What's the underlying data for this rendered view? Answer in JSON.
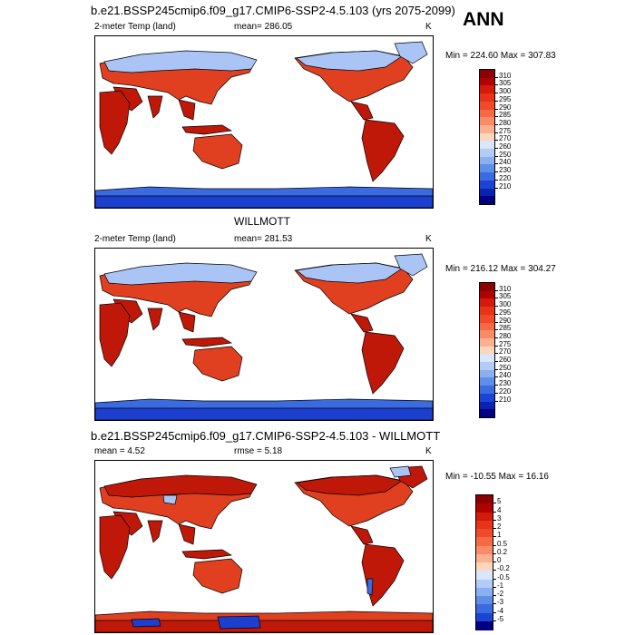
{
  "panel1": {
    "title": "b.e21.BSSP245cmip6.f09_g17.CMIP6-SSP2-4.5.103 (yrs 2075-2099)",
    "left_label": "2-meter Temp (land)",
    "center_label": "mean= 286.05",
    "units": "K",
    "minmax": "Min = 224.60 Max = 307.83",
    "colorbar": {
      "labels": [
        "310",
        "305",
        "300",
        "295",
        "290",
        "285",
        "280",
        "275",
        "270",
        "260",
        "250",
        "240",
        "230",
        "220",
        "210"
      ],
      "colors": [
        "#8b0000",
        "#b00000",
        "#d41a0a",
        "#e6331a",
        "#f04a2a",
        "#f56a45",
        "#f98c66",
        "#fbb090",
        "#fdd6bc",
        "#d9e6fb",
        "#b3ccf7",
        "#8ab0f0",
        "#5f8ee8",
        "#3b6be0",
        "#1c44d4",
        "#0a22b0",
        "#000080"
      ]
    }
  },
  "panel2": {
    "title": "WILLMOTT",
    "left_label": "2-meter Temp (land)",
    "center_label": "mean= 281.53",
    "units": "K",
    "minmax": "Min = 216.12 Max = 304.27",
    "colorbar": {
      "labels": [
        "310",
        "305",
        "300",
        "295",
        "290",
        "285",
        "280",
        "275",
        "270",
        "260",
        "250",
        "240",
        "230",
        "220",
        "210"
      ],
      "colors": [
        "#8b0000",
        "#b00000",
        "#d41a0a",
        "#e6331a",
        "#f04a2a",
        "#f56a45",
        "#f98c66",
        "#fbb090",
        "#fdd6bc",
        "#d9e6fb",
        "#b3ccf7",
        "#8ab0f0",
        "#5f8ee8",
        "#3b6be0",
        "#1c44d4",
        "#0a22b0",
        "#000080"
      ]
    }
  },
  "panel3": {
    "title": "b.e21.BSSP245cmip6.f09_g17.CMIP6-SSP2-4.5.103 - WILLMOTT",
    "left_label": "mean =   4.52",
    "center_label": "rmse =    5.18",
    "units": "K",
    "minmax": "Min = -10.55 Max =  16.16",
    "colorbar": {
      "labels": [
        "5",
        "4",
        "3",
        "2",
        "1",
        "0.5",
        "0.2",
        "0",
        "-0.2",
        "-0.5",
        "-1",
        "-2",
        "-3",
        "-4",
        "-5"
      ],
      "colors": [
        "#8b0000",
        "#b00000",
        "#d41a0a",
        "#e6331a",
        "#f04a2a",
        "#f56a45",
        "#f98c66",
        "#fbb090",
        "#fdd6bc",
        "#d9e6fb",
        "#b3ccf7",
        "#8ab0f0",
        "#5f8ee8",
        "#3b6be0",
        "#1c44d4",
        "#000080"
      ]
    }
  },
  "season": "ANN",
  "colors": {
    "warm": "#e0401f",
    "hot": "#c01808",
    "cool": "#a9c4f5",
    "cold": "#3b6be0",
    "ice": "#1c3fd0",
    "coast": "#000000"
  }
}
